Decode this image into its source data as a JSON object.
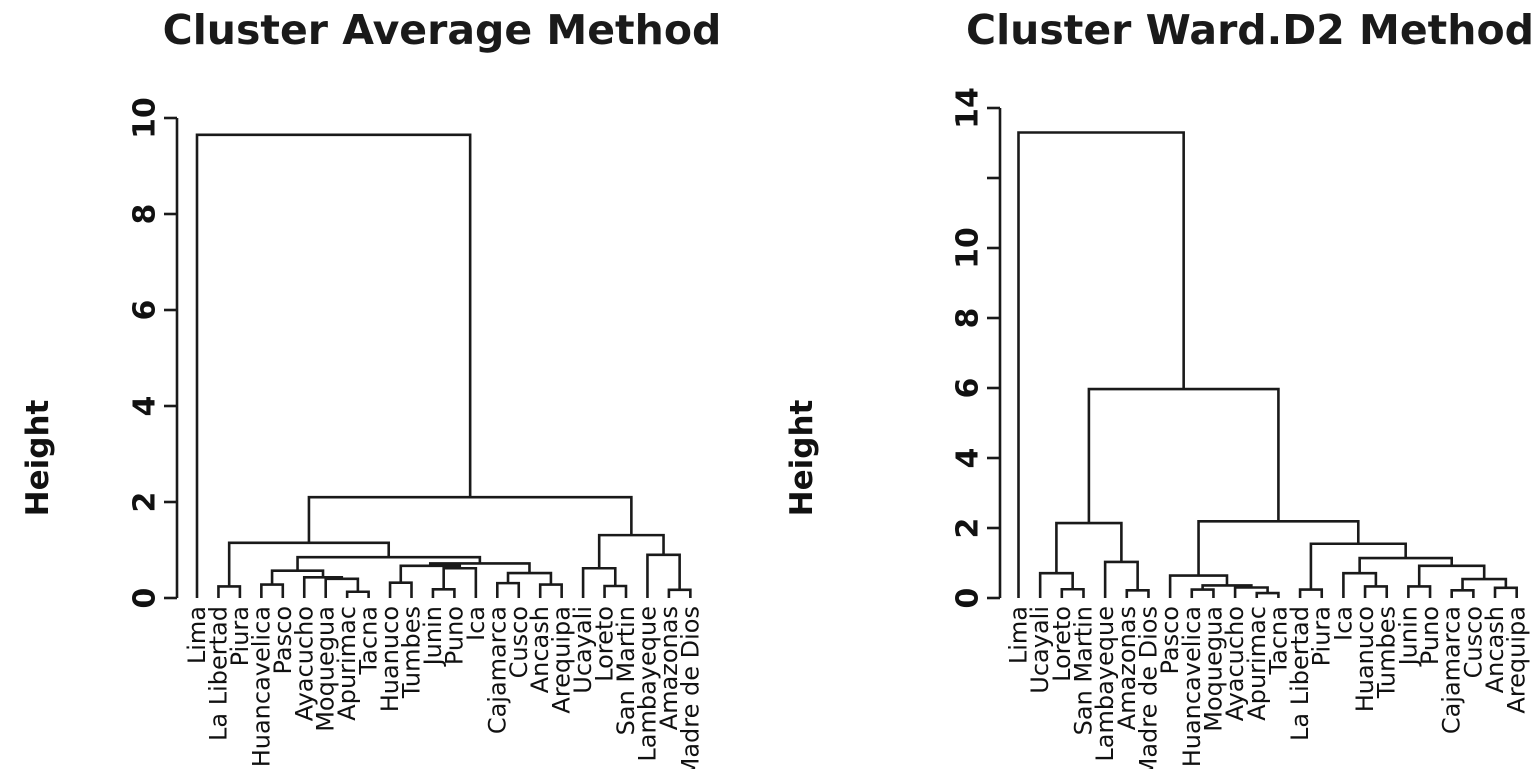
{
  "chart_data": [
    {
      "type": "dendrogram",
      "title": "Cluster Average Method",
      "ylabel": "Height",
      "ylim": [
        0,
        10
      ],
      "yticks": [
        0,
        2,
        4,
        6,
        8,
        10
      ],
      "ytick_labels": [
        "0",
        "2",
        "4",
        "6",
        "8",
        "10"
      ],
      "leaves_in_order": [
        "Lima",
        "La Libertad",
        "Piura",
        "Huancavelica",
        "Pasco",
        "Ayacucho",
        "Moquegua",
        "Apurimac",
        "Tacna",
        "Huanuco",
        "Tumbes",
        "Junin",
        "Puno",
        "Ica",
        "Cajamarca",
        "Cusco",
        "Ancash",
        "Arequipa",
        "Ucayali",
        "Loreto",
        "San Martin",
        "Lambayeque",
        "Amazonas",
        "Madre de Dios"
      ],
      "root_height": 9.65,
      "tree": {
        "h": 9.65,
        "c": [
          {
            "leaf": "Lima"
          },
          {
            "h": 2.1,
            "c": [
              {
                "h": 1.15,
                "c": [
                  {
                    "h": 0.24,
                    "c": [
                      {
                        "leaf": "La Libertad"
                      },
                      {
                        "leaf": "Piura"
                      }
                    ]
                  },
                  {
                    "h": 0.85,
                    "c": [
                      {
                        "h": 0.57,
                        "c": [
                          {
                            "h": 0.28,
                            "c": [
                              {
                                "leaf": "Huancavelica"
                              },
                              {
                                "leaf": "Pasco"
                              }
                            ]
                          },
                          {
                            "h": 0.43,
                            "c": [
                              {
                                "leaf": "Ayacucho"
                              },
                              {
                                "h": 0.4,
                                "c": [
                                  {
                                    "leaf": "Moquegua"
                                  },
                                  {
                                    "h": 0.13,
                                    "c": [
                                      {
                                        "leaf": "Apurimac"
                                      },
                                      {
                                        "leaf": "Tacna"
                                      }
                                    ]
                                  }
                                ]
                              }
                            ]
                          }
                        ]
                      },
                      {
                        "h": 0.72,
                        "c": [
                          {
                            "h": 0.67,
                            "c": [
                              {
                                "h": 0.32,
                                "c": [
                                  {
                                    "leaf": "Huanuco"
                                  },
                                  {
                                    "leaf": "Tumbes"
                                  }
                                ]
                              },
                              {
                                "h": 0.62,
                                "c": [
                                  {
                                    "h": 0.18,
                                    "c": [
                                      {
                                        "leaf": "Junin"
                                      },
                                      {
                                        "leaf": "Puno"
                                      }
                                    ]
                                  },
                                  {
                                    "leaf": "Ica"
                                  }
                                ]
                              }
                            ]
                          },
                          {
                            "h": 0.52,
                            "c": [
                              {
                                "h": 0.31,
                                "c": [
                                  {
                                    "leaf": "Cajamarca"
                                  },
                                  {
                                    "leaf": "Cusco"
                                  }
                                ]
                              },
                              {
                                "h": 0.28,
                                "c": [
                                  {
                                    "leaf": "Ancash"
                                  },
                                  {
                                    "leaf": "Arequipa"
                                  }
                                ]
                              }
                            ]
                          }
                        ]
                      }
                    ]
                  }
                ]
              },
              {
                "h": 1.31,
                "c": [
                  {
                    "h": 0.62,
                    "c": [
                      {
                        "leaf": "Ucayali"
                      },
                      {
                        "h": 0.25,
                        "c": [
                          {
                            "leaf": "Loreto"
                          },
                          {
                            "leaf": "San Martin"
                          }
                        ]
                      }
                    ]
                  },
                  {
                    "h": 0.9,
                    "c": [
                      {
                        "leaf": "Lambayeque"
                      },
                      {
                        "h": 0.17,
                        "c": [
                          {
                            "leaf": "Amazonas"
                          },
                          {
                            "leaf": "Madre de Dios"
                          }
                        ]
                      }
                    ]
                  }
                ]
              }
            ]
          }
        ]
      }
    },
    {
      "type": "dendrogram",
      "title": "Cluster Ward.D2 Method",
      "ylabel": "Height",
      "ylim": [
        0,
        14
      ],
      "yticks": [
        0,
        2,
        4,
        6,
        8,
        10,
        12,
        14
      ],
      "ytick_labels": [
        "0",
        "2",
        "4",
        "6",
        "8",
        "10",
        "",
        "14"
      ],
      "leaves_in_order": [
        "Lima",
        "Ucayali",
        "Loreto",
        "San Martin",
        "Lambayeque",
        "Amazonas",
        "Madre de Dios",
        "Pasco",
        "Huancavelica",
        "Moquegua",
        "Ayacucho",
        "Apurimac",
        "Tacna",
        "La Libertad",
        "Piura",
        "Ica",
        "Huanuco",
        "Tumbes",
        "Junin",
        "Puno",
        "Cajamarca",
        "Cusco",
        "Ancash",
        "Arequipa"
      ],
      "root_height": 13.3,
      "tree": {
        "h": 13.3,
        "c": [
          {
            "leaf": "Lima"
          },
          {
            "h": 5.97,
            "c": [
              {
                "h": 2.14,
                "c": [
                  {
                    "h": 0.71,
                    "c": [
                      {
                        "leaf": "Ucayali"
                      },
                      {
                        "h": 0.25,
                        "c": [
                          {
                            "leaf": "Loreto"
                          },
                          {
                            "leaf": "San Martin"
                          }
                        ]
                      }
                    ]
                  },
                  {
                    "h": 1.03,
                    "c": [
                      {
                        "leaf": "Lambayeque"
                      },
                      {
                        "h": 0.22,
                        "c": [
                          {
                            "leaf": "Amazonas"
                          },
                          {
                            "leaf": "Madre de Dios"
                          }
                        ]
                      }
                    ]
                  }
                ]
              },
              {
                "h": 2.19,
                "c": [
                  {
                    "h": 0.64,
                    "c": [
                      {
                        "leaf": "Pasco"
                      },
                      {
                        "h": 0.36,
                        "c": [
                          {
                            "h": 0.24,
                            "c": [
                              {
                                "leaf": "Huancavelica"
                              },
                              {
                                "leaf": "Moquegua"
                              }
                            ]
                          },
                          {
                            "h": 0.3,
                            "c": [
                              {
                                "leaf": "Ayacucho"
                              },
                              {
                                "h": 0.14,
                                "c": [
                                  {
                                    "leaf": "Apurimac"
                                  },
                                  {
                                    "leaf": "Tacna"
                                  }
                                ]
                              }
                            ]
                          }
                        ]
                      }
                    ]
                  },
                  {
                    "h": 1.55,
                    "c": [
                      {
                        "h": 0.24,
                        "c": [
                          {
                            "leaf": "La Libertad"
                          },
                          {
                            "leaf": "Piura"
                          }
                        ]
                      },
                      {
                        "h": 1.14,
                        "c": [
                          {
                            "h": 0.71,
                            "c": [
                              {
                                "leaf": "Ica"
                              },
                              {
                                "h": 0.33,
                                "c": [
                                  {
                                    "leaf": "Huanuco"
                                  },
                                  {
                                    "leaf": "Tumbes"
                                  }
                                ]
                              }
                            ]
                          },
                          {
                            "h": 0.92,
                            "c": [
                              {
                                "h": 0.33,
                                "c": [
                                  {
                                    "leaf": "Junin"
                                  },
                                  {
                                    "leaf": "Puno"
                                  }
                                ]
                              },
                              {
                                "h": 0.54,
                                "c": [
                                  {
                                    "h": 0.22,
                                    "c": [
                                      {
                                        "leaf": "Cajamarca"
                                      },
                                      {
                                        "leaf": "Cusco"
                                      }
                                    ]
                                  },
                                  {
                                    "h": 0.29,
                                    "c": [
                                      {
                                        "leaf": "Ancash"
                                      },
                                      {
                                        "leaf": "Arequipa"
                                      }
                                    ]
                                  }
                                ]
                              }
                            ]
                          }
                        ]
                      }
                    ]
                  }
                ]
              }
            ]
          }
        ]
      }
    }
  ],
  "colors": {
    "line": "#1a1a1a",
    "background": "#ffffff"
  }
}
